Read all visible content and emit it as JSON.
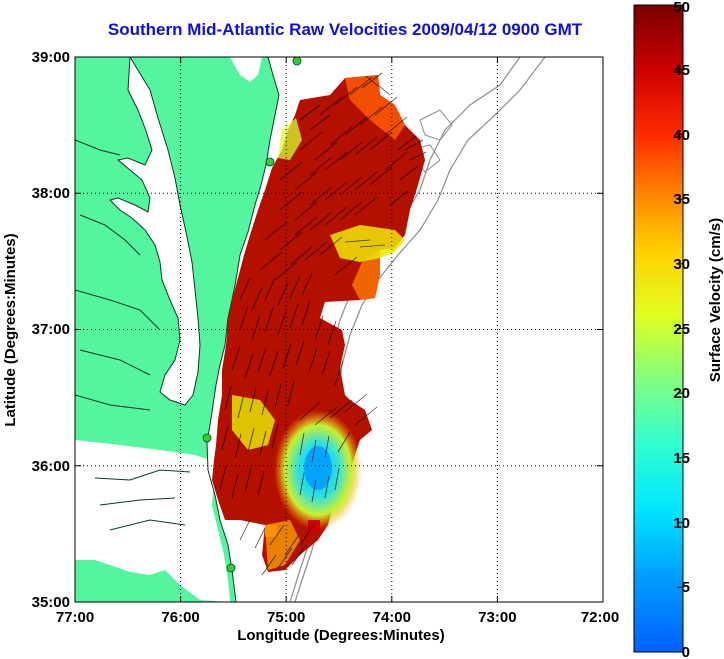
{
  "title": "Southern Mid-Atlantic Raw Velocities 2009/04/12 0900 GMT",
  "x_axis": {
    "label": "Longitude (Degrees:Minutes)",
    "ticks": [
      "77:00",
      "76:00",
      "75:00",
      "74:00",
      "73:00",
      "72:00"
    ]
  },
  "y_axis": {
    "label": "Latitude (Degrees:Minutes)",
    "ticks": [
      "39:00",
      "38:00",
      "37:00",
      "36:00",
      "35:00"
    ]
  },
  "colorbar": {
    "label": "Surface Velocity (cm/s)",
    "ticks": [
      "0",
      "5",
      "10",
      "15",
      "20",
      "25",
      "30",
      "35",
      "40",
      "45",
      "50"
    ],
    "min": 0,
    "max": 50,
    "colormap": "jet"
  },
  "colors": {
    "land": "#55f5a0",
    "title": "#1010d8",
    "high_velocity": "#8b0000",
    "low_velocity": "#00bfff"
  },
  "map": {
    "extent": {
      "lon": [
        -77,
        -72
      ],
      "lat": [
        35,
        39
      ]
    },
    "grid": true,
    "features": [
      "land-mass",
      "coastline",
      "bathymetry-contours",
      "velocity-field",
      "velocity-vectors",
      "hf-radar-sites"
    ]
  }
}
